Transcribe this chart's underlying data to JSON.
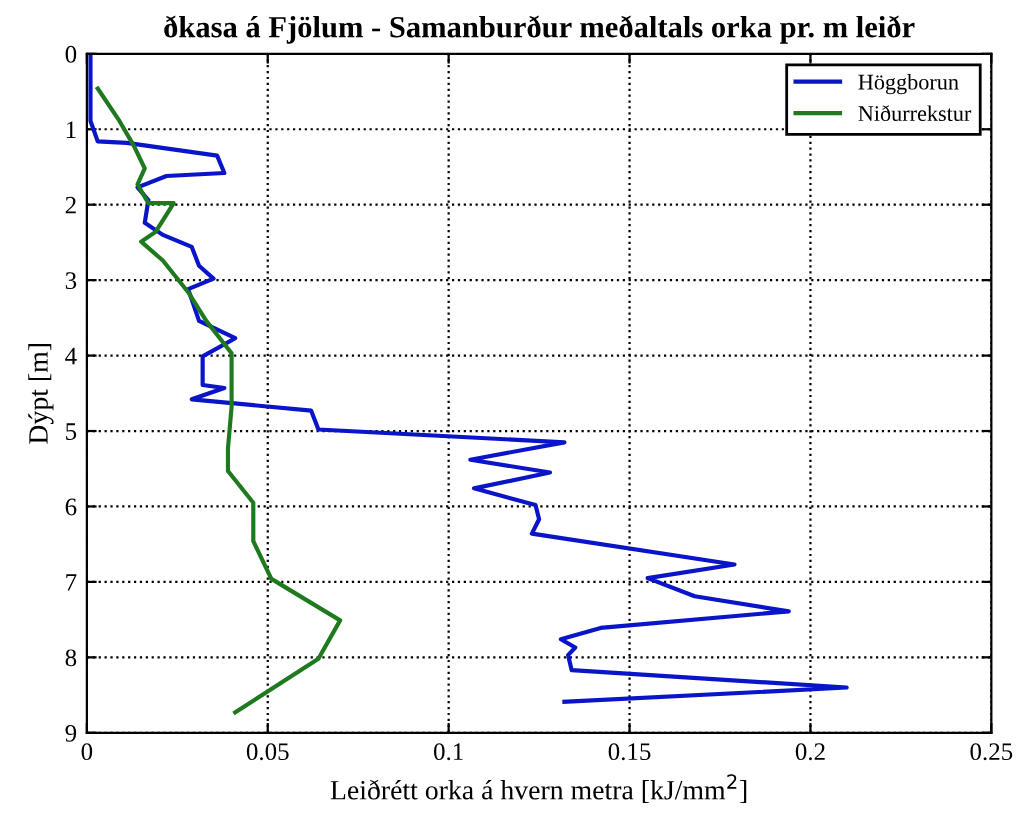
{
  "chart_data": {
    "type": "line",
    "title": "ðkasa á Fjölum - Samanburður meðaltals orka pr. m leiðr",
    "xlabel": "Leiðrétt orka á hvern metra [kJ/mm$^{2}$]",
    "ylabel": "Dýpt [m]",
    "xlim": [
      0,
      0.25
    ],
    "xticks": [
      0,
      0.05,
      0.1,
      0.15,
      0.2,
      0.25
    ],
    "ylim": [
      9,
      0
    ],
    "yticks": [
      0,
      1,
      2,
      3,
      4,
      5,
      6,
      7,
      8,
      9
    ],
    "grid": true,
    "legend": "top right",
    "series": [
      {
        "name": "Höggborun",
        "color": "#0a14c8",
        "x": [
          0.001,
          0.001,
          0.003,
          0.011,
          0.036,
          0.038,
          0.022,
          0.014,
          0.017,
          0.016,
          0.021,
          0.029,
          0.031,
          0.035,
          0.028,
          0.031,
          0.041,
          0.032,
          0.032,
          0.038,
          0.029,
          0.062,
          0.064,
          0.132,
          0.106,
          0.128,
          0.107,
          0.124,
          0.125,
          0.123,
          0.179,
          0.155,
          0.168,
          0.194,
          0.142,
          0.131,
          0.135,
          0.133,
          0.134,
          0.21,
          0.132
        ],
        "values": [
          0,
          0.89,
          1.16,
          1.18,
          1.35,
          1.58,
          1.62,
          1.77,
          1.94,
          2.24,
          2.4,
          2.56,
          2.81,
          2.98,
          3.12,
          3.54,
          3.77,
          4.01,
          4.39,
          4.43,
          4.58,
          4.73,
          4.98,
          5.15,
          5.38,
          5.55,
          5.76,
          5.98,
          6.17,
          6.36,
          6.77,
          6.95,
          7.19,
          7.39,
          7.61,
          7.76,
          7.87,
          7.97,
          8.17,
          8.4,
          8.59
        ]
      },
      {
        "name": "Niðurrekstur",
        "color": "#1f7a1f",
        "x": [
          0.003,
          0.009,
          0.013,
          0.016,
          0.014,
          0.017,
          0.024,
          0.019,
          0.015,
          0.021,
          0.028,
          0.033,
          0.04,
          0.04,
          0.039,
          0.039,
          0.046,
          0.046,
          0.051,
          0.07,
          0.064,
          0.041
        ],
        "values": [
          0.46,
          0.89,
          1.22,
          1.52,
          1.73,
          1.98,
          1.98,
          2.36,
          2.49,
          2.74,
          3.16,
          3.54,
          3.97,
          4.68,
          5.23,
          5.53,
          5.95,
          6.46,
          6.96,
          7.51,
          8.02,
          8.73
        ]
      }
    ]
  }
}
